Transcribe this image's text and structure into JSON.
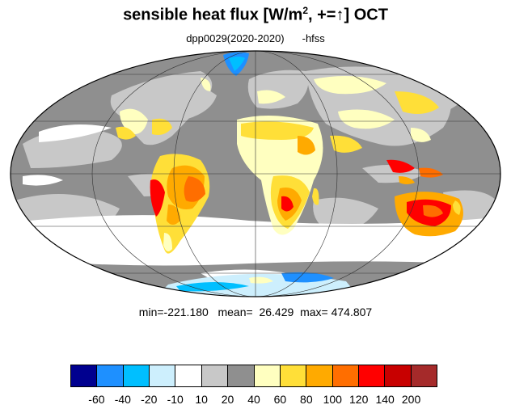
{
  "title": {
    "prefix": "sensible heat flux [W/m",
    "sup": "2",
    "suffix": ", +=↑]  OCT"
  },
  "subtitle": {
    "run": "dpp0029(2020-2020)",
    "variable": "-hfss"
  },
  "stats": {
    "min_label": "min=",
    "min": "-221.180",
    "mean_label": "mean=",
    "mean": "26.429",
    "max_label": "max=",
    "max": "474.807"
  },
  "colorbar": {
    "colors": [
      "#00008f",
      "#1e90ff",
      "#00bfff",
      "#cdeffd",
      "#ffffff",
      "#c8c8c8",
      "#8f8f8f",
      "#ffffc0",
      "#ffdf38",
      "#ffaa00",
      "#ff6e00",
      "#ff0000",
      "#c80000",
      "#a52a2a"
    ],
    "ticks": [
      "-60",
      "-40",
      "-20",
      "-10",
      "10",
      "20",
      "40",
      "60",
      "80",
      "100",
      "120",
      "140",
      "200"
    ]
  },
  "legend_colors": {
    "ocean_base": "#8f8f8f",
    "light_gray": "#c8c8c8",
    "white": "#ffffff",
    "land_warm": "#ffdf38",
    "land_hot": "#ff0000",
    "antarctic_cold": "#00bfff"
  }
}
